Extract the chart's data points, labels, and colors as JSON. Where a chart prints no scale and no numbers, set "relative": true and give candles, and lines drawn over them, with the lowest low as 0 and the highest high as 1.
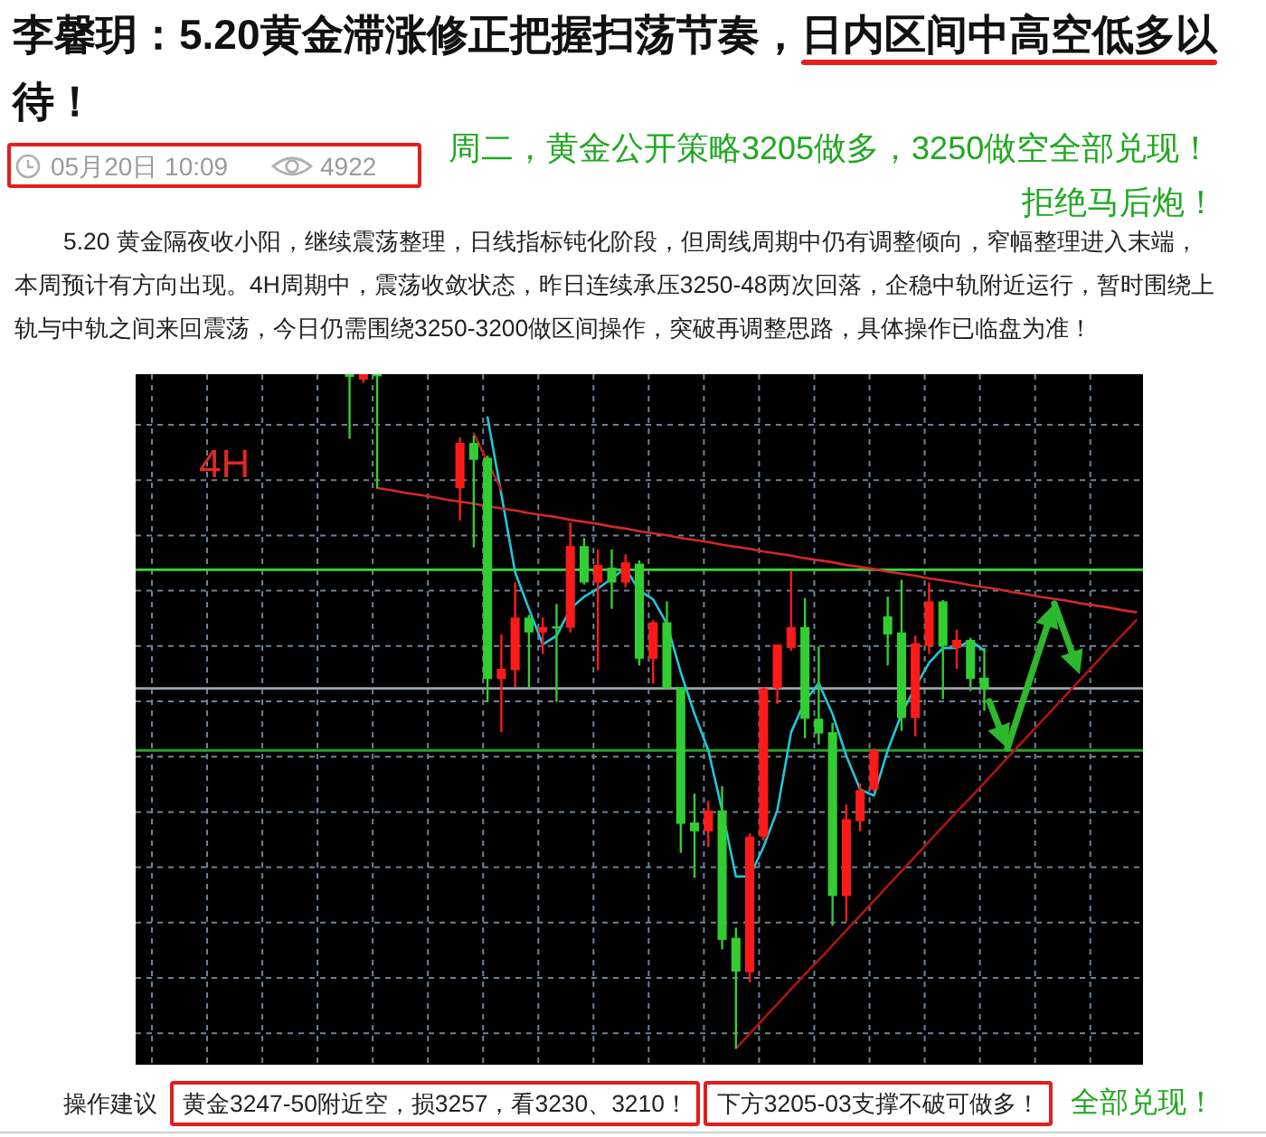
{
  "chart_data": {
    "type": "candlestick",
    "title": "李馨玥：5.20黄金滞涨修正把握扫荡节奏，日内区间中高空低多以待！",
    "annotations": [
      "05月20日 10:09",
      "4922",
      "周二，黄金公开策略3205做多，3250做空全部兑现！",
      "拒绝马后炮！",
      "5.20 黄金隔夜收小阳，继续震荡整理，日线指标钝化阶段，但周线周期中仍有调整倾向，窄幅整理进入末端，本周预计有方向出现。4H周期中，震荡收敛状态，昨日连续承压3250-48两次回落，企稳中轨附近运行，暂时围绕上轨与中轨之间来回震荡，今日仍需围绕3250-3200做区间操作，突破再调整思路，具体操作已临盘为准！",
      "操作建议",
      "黄金3247-50附近空，损3257，看3230、3210！",
      "下方3205-03支撑不破可做多！",
      "全部兑现！",
      "4H"
    ],
    "relative": true,
    "grid": true,
    "categories": [
      null,
      null,
      null,
      null,
      null,
      null,
      null,
      null,
      null,
      null,
      null,
      null,
      null,
      null,
      null,
      null,
      null,
      null,
      null,
      null,
      null,
      null,
      null,
      null,
      null,
      null,
      null,
      null,
      null,
      null,
      null,
      null,
      null,
      null,
      null,
      null,
      null,
      null,
      null,
      null,
      null,
      null,
      null,
      null,
      null,
      null,
      null,
      null,
      null,
      null,
      null,
      null,
      null,
      null,
      null,
      null,
      null,
      null,
      null,
      null,
      null,
      null,
      null,
      null,
      null,
      null,
      null,
      null,
      null,
      null,
      null,
      null,
      null
    ],
    "ohlc": [
      null,
      null,
      null,
      null,
      null,
      null,
      null,
      null,
      null,
      null,
      null,
      null,
      null,
      null,
      null,
      [
        1.0,
        1.0,
        0.904,
        0.996
      ],
      [
        0.992,
        1.0,
        0.987,
        1.0
      ],
      [
        1.0,
        1.0,
        0.831,
        0.999
      ],
      null,
      null,
      null,
      null,
      null,
      [
        0.831,
        0.906,
        0.783,
        0.898
      ],
      [
        0.898,
        0.909,
        0.743,
        0.873
      ],
      [
        0.876,
        0.879,
        0.514,
        0.548
      ],
      [
        0.548,
        0.614,
        0.469,
        0.563
      ],
      [
        0.561,
        0.691,
        0.536,
        0.639
      ],
      [
        0.639,
        0.643,
        0.534,
        0.617
      ],
      [
        0.617,
        0.639,
        0.585,
        0.625
      ],
      [
        0.626,
        0.659,
        0.514,
        0.625
      ],
      [
        0.624,
        0.78,
        0.617,
        0.745
      ],
      [
        0.745,
        0.757,
        0.688,
        0.691
      ],
      [
        0.691,
        0.74,
        0.561,
        0.717
      ],
      [
        0.713,
        0.74,
        0.652,
        0.691
      ],
      [
        0.691,
        0.733,
        0.684,
        0.721
      ],
      [
        0.719,
        0.724,
        0.568,
        0.578
      ],
      [
        0.578,
        0.635,
        0.541,
        0.632
      ],
      [
        0.632,
        0.663,
        0.534,
        0.534
      ],
      [
        0.536,
        0.536,
        0.29,
        0.333
      ],
      [
        0.335,
        0.378,
        0.253,
        0.322
      ],
      [
        0.322,
        0.367,
        0.299,
        0.353
      ],
      [
        0.353,
        0.389,
        0.147,
        0.161
      ],
      [
        0.164,
        0.179,
        0.0,
        0.114
      ],
      [
        0.113,
        0.319,
        0.098,
        0.314
      ],
      [
        0.314,
        0.536,
        0.308,
        0.534
      ],
      [
        0.534,
        0.599,
        0.511,
        0.599
      ],
      [
        0.594,
        0.708,
        0.59,
        0.625
      ],
      [
        0.625,
        0.668,
        0.46,
        0.489
      ],
      [
        0.489,
        0.596,
        0.451,
        0.467
      ],
      [
        0.469,
        0.483,
        0.182,
        0.226
      ],
      [
        0.226,
        0.362,
        0.188,
        0.34
      ],
      [
        0.337,
        0.393,
        0.322,
        0.383
      ],
      [
        0.384,
        0.445,
        0.381,
        0.442
      ],
      [
        0.641,
        0.67,
        0.568,
        0.614
      ],
      [
        0.617,
        0.695,
        0.471,
        0.49
      ],
      [
        0.49,
        0.612,
        0.463,
        0.601
      ],
      [
        0.597,
        0.691,
        0.585,
        0.663
      ],
      [
        0.663,
        0.665,
        0.518,
        0.597
      ],
      [
        0.594,
        0.621,
        0.563,
        0.606
      ],
      [
        0.606,
        0.609,
        0.53,
        0.548
      ],
      [
        0.55,
        0.594,
        0.501,
        0.532
      ],
      null,
      null,
      null,
      null,
      null,
      null,
      null,
      null,
      null,
      null,
      null
    ],
    "colors": [
      null,
      null,
      null,
      null,
      null,
      null,
      null,
      null,
      null,
      null,
      null,
      null,
      null,
      null,
      null,
      "#32cd32",
      "#ff1a1a",
      "#32cd32",
      null,
      null,
      null,
      null,
      null,
      "#ff1a1a",
      "#32cd32",
      "#32cd32",
      "#ff1a1a",
      "#ff1a1a",
      "#32cd32",
      "#ff1a1a",
      "#32cd32",
      "#ff1a1a",
      "#32cd32",
      "#ff1a1a",
      "#32cd32",
      "#ff1a1a",
      "#32cd32",
      "#ff1a1a",
      "#32cd32",
      "#32cd32",
      "#32cd32",
      "#ff1a1a",
      "#32cd32",
      "#32cd32",
      "#ff1a1a",
      "#ff1a1a",
      "#ff1a1a",
      "#ff1a1a",
      "#32cd32",
      "#32cd32",
      "#32cd32",
      "#ff1a1a",
      "#ff1a1a",
      "#ff1a1a",
      "#32cd32",
      "#32cd32",
      "#ff1a1a",
      "#ff1a1a",
      "#32cd32",
      "#ff1a1a",
      "#32cd32",
      "#32cd32",
      null,
      null,
      null,
      null,
      null,
      null,
      null,
      null,
      null,
      null,
      null
    ],
    "series": [
      {
        "type": "line",
        "color": "#1ec8dc",
        "values": [
          null,
          null,
          null,
          null,
          null,
          null,
          null,
          null,
          null,
          null,
          null,
          null,
          null,
          null,
          null,
          null,
          null,
          null,
          null,
          null,
          null,
          null,
          null,
          null,
          null,
          0.936,
          0.822,
          0.706,
          0.652,
          0.599,
          0.612,
          0.652,
          0.67,
          0.682,
          0.697,
          0.712,
          0.679,
          0.666,
          0.63,
          0.558,
          0.496,
          0.442,
          0.353,
          0.255,
          0.255,
          0.299,
          0.353,
          0.469,
          0.515,
          0.542,
          0.496,
          0.434,
          0.384,
          0.375,
          0.442,
          0.496,
          0.536,
          0.572,
          0.594,
          0.594,
          0.605,
          0.59,
          null,
          null,
          null,
          null,
          null,
          null,
          null,
          null,
          null,
          null,
          null
        ]
      },
      {
        "type": "line",
        "color": "#d42828",
        "values": [
          null,
          null,
          null,
          null,
          null,
          null,
          null,
          null,
          null,
          null,
          null,
          null,
          null,
          null,
          null,
          null,
          null,
          0.831,
          0.828,
          0.824,
          0.821,
          0.818,
          0.814,
          0.811,
          0.808,
          0.804,
          0.801,
          0.798,
          0.794,
          0.791,
          0.788,
          0.784,
          0.781,
          0.778,
          0.774,
          0.771,
          0.767,
          0.764,
          0.761,
          0.757,
          0.754,
          0.751,
          0.747,
          0.744,
          0.741,
          0.737,
          0.734,
          0.731,
          0.727,
          0.724,
          0.721,
          0.717,
          0.714,
          0.711,
          0.707,
          0.704,
          0.701,
          0.697,
          0.694,
          0.691,
          0.687,
          0.684,
          0.681,
          0.677,
          0.674,
          0.67,
          0.667,
          0.664,
          0.66,
          0.657,
          0.654,
          0.65,
          0.647
        ]
      },
      {
        "type": "line",
        "color": "#b01414",
        "values": [
          null,
          null,
          null,
          null,
          null,
          null,
          null,
          null,
          null,
          null,
          null,
          null,
          null,
          null,
          null,
          null,
          null,
          null,
          null,
          null,
          null,
          null,
          null,
          null,
          null,
          null,
          null,
          null,
          null,
          null,
          null,
          null,
          null,
          null,
          null,
          null,
          null,
          null,
          null,
          null,
          null,
          null,
          null,
          0.0,
          0.022,
          0.044,
          0.066,
          0.088,
          0.11,
          0.131,
          0.153,
          0.175,
          0.197,
          0.219,
          0.241,
          0.263,
          0.285,
          0.307,
          0.329,
          0.351,
          0.372,
          0.394,
          0.416,
          0.438,
          0.46,
          0.482,
          0.504,
          0.526,
          0.548,
          0.57,
          0.592,
          0.613,
          0.635
        ]
      },
      {
        "type": "line",
        "color": "#c41c1c",
        "values": [
          null,
          null,
          null,
          null,
          null,
          null,
          null,
          null,
          null,
          null,
          null,
          null,
          null,
          null,
          null,
          null,
          null,
          null,
          null,
          null,
          null,
          null,
          null,
          null,
          0.912,
          0.87,
          0.829,
          null,
          null,
          null,
          null,
          null,
          null,
          null,
          null,
          null,
          null,
          null,
          null,
          null,
          null,
          null,
          null,
          null,
          null,
          null,
          null,
          null,
          null,
          null,
          null,
          null,
          null,
          null,
          null,
          null,
          null,
          null,
          null,
          null,
          null,
          null,
          null,
          null,
          null,
          null,
          null,
          null,
          null,
          null,
          null,
          null,
          null
        ]
      }
    ],
    "ref_lines": [
      {
        "axis": "y",
        "value": 0.71,
        "color": "#3ad83a"
      },
      {
        "axis": "y",
        "value": 0.534,
        "color": "#9aa4ae"
      },
      {
        "axis": "y",
        "value": 0.442,
        "color": "#2e9e2e"
      }
    ]
  }
}
